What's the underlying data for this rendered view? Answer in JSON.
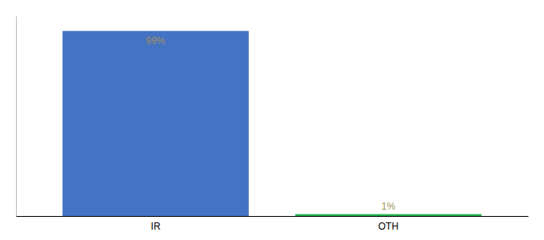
{
  "chart_data": {
    "type": "bar",
    "categories": [
      "IR",
      "OTH"
    ],
    "values": [
      99,
      1
    ],
    "value_labels": [
      "99%",
      "1%"
    ],
    "colors": [
      "#4472c4",
      "#22b14c"
    ],
    "ylim": [
      0,
      107
    ],
    "data_labels": true,
    "tick_labels": "x",
    "grid": false
  }
}
